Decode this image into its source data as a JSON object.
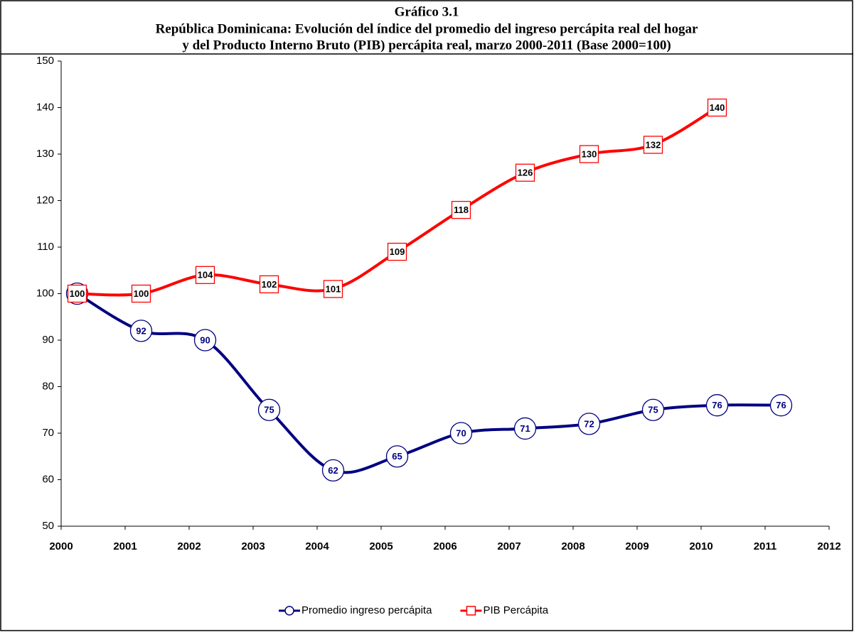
{
  "chart_data": {
    "type": "line",
    "title": [
      "Gráfico 3.1",
      "República Dominicana: Evolución del índice del promedio del ingreso percápita real del hogar",
      "y del Producto Interno Bruto (PIB) percápita real, marzo 2000-2011 (Base 2000=100)"
    ],
    "x": [
      2000.25,
      2001.25,
      2002.25,
      2003.25,
      2004.25,
      2005.25,
      2006.25,
      2007.25,
      2008.25,
      2009.25,
      2010.25,
      2011.25
    ],
    "series": [
      {
        "name": "Promedio ingreso percápita",
        "color": "#000080",
        "marker": "circle",
        "values": [
          100,
          92,
          90,
          75,
          62,
          65,
          70,
          71,
          72,
          75,
          76,
          76
        ]
      },
      {
        "name": "PIB Percápita",
        "color": "#ff0000",
        "marker": "square",
        "values": [
          100,
          100,
          104,
          102,
          101,
          109,
          118,
          126,
          130,
          132,
          140,
          null
        ]
      }
    ],
    "xlim": [
      2000,
      2012
    ],
    "xticks": [
      2000,
      2001,
      2002,
      2003,
      2004,
      2005,
      2006,
      2007,
      2008,
      2009,
      2010,
      2011,
      2012
    ],
    "ylim": [
      50,
      150
    ],
    "yticks": [
      50,
      60,
      70,
      80,
      90,
      100,
      110,
      120,
      130,
      140,
      150
    ],
    "legend": "bottom"
  }
}
